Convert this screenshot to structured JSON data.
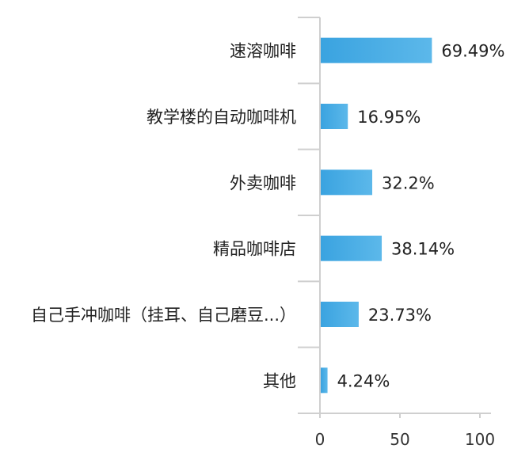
{
  "chart_data": {
    "type": "bar",
    "orientation": "horizontal",
    "categories": [
      "速溶咖啡",
      "教学楼的自动咖啡机",
      "外卖咖啡",
      "精品咖啡店",
      "自己手冲咖啡（挂耳、自己磨豆...）",
      "其他"
    ],
    "values": [
      69.49,
      16.95,
      32.2,
      38.14,
      23.73,
      4.24
    ],
    "value_labels": [
      "69.49%",
      "16.95%",
      "32.2%",
      "38.14%",
      "23.73%",
      "4.24%"
    ],
    "xlim": [
      0,
      100
    ],
    "x_ticks": [
      0,
      50,
      100
    ],
    "x_tick_labels": [
      "0",
      "50",
      "100"
    ],
    "grid": false,
    "legend": "none",
    "colors": {
      "bar": "#3aa3e0",
      "bar_gradient_end": "#5cb8ea",
      "axis": "#cfcfcf",
      "text": "#222222"
    }
  }
}
